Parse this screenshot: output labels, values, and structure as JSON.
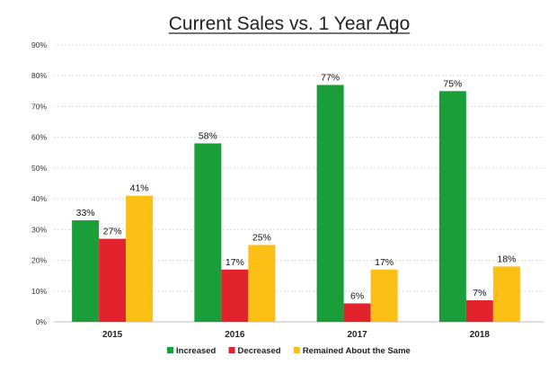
{
  "chart_data": {
    "type": "bar",
    "title": "Current Sales vs. 1 Year Ago",
    "xlabel": "",
    "ylabel": "",
    "categories": [
      "2015",
      "2016",
      "2017",
      "2018"
    ],
    "series": [
      {
        "name": "Increased",
        "color": "#1a9e3a",
        "values": [
          33,
          58,
          77,
          75
        ]
      },
      {
        "name": "Decreased",
        "color": "#e3232c",
        "values": [
          27,
          17,
          6,
          7
        ]
      },
      {
        "name": "Remained About the Same",
        "color": "#fcbf16",
        "values": [
          41,
          25,
          17,
          18
        ]
      }
    ],
    "data_labels": [
      [
        "33%",
        "58%",
        "77%",
        "75%"
      ],
      [
        "27%",
        "17%",
        "6%",
        "7%"
      ],
      [
        "41%",
        "25%",
        "17%",
        "18%"
      ]
    ],
    "ylim": [
      0,
      90
    ],
    "yticks": [
      0,
      10,
      20,
      30,
      40,
      50,
      60,
      70,
      80,
      90
    ],
    "ytick_labels": [
      "0%",
      "10%",
      "20%",
      "30%",
      "40%",
      "50%",
      "60%",
      "70%",
      "80%",
      "90%"
    ],
    "grid": true,
    "legend_position": "bottom"
  }
}
